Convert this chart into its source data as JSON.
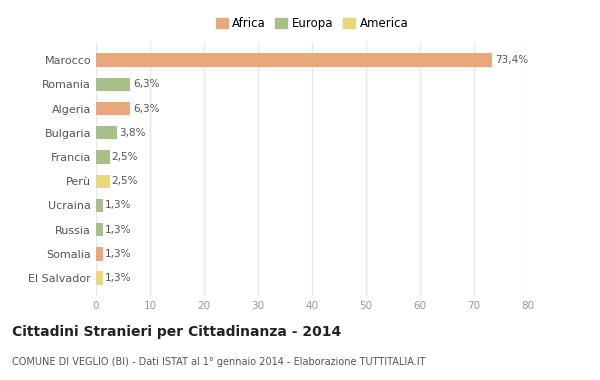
{
  "categories": [
    "Marocco",
    "Romania",
    "Algeria",
    "Bulgaria",
    "Francia",
    "Perù",
    "Ucraina",
    "Russia",
    "Somalia",
    "El Salvador"
  ],
  "values": [
    73.4,
    6.3,
    6.3,
    3.8,
    2.5,
    2.5,
    1.3,
    1.3,
    1.3,
    1.3
  ],
  "labels": [
    "73,4%",
    "6,3%",
    "6,3%",
    "3,8%",
    "2,5%",
    "2,5%",
    "1,3%",
    "1,3%",
    "1,3%",
    "1,3%"
  ],
  "colors": [
    "#e8a87c",
    "#a8bf8a",
    "#e8a87c",
    "#a8bf8a",
    "#a8bf8a",
    "#e8d87a",
    "#a8bf8a",
    "#a8bf8a",
    "#e8a87c",
    "#e8d87a"
  ],
  "legend": [
    {
      "label": "Africa",
      "color": "#e8a87c"
    },
    {
      "label": "Europa",
      "color": "#a8bf8a"
    },
    {
      "label": "America",
      "color": "#e8d87a"
    }
  ],
  "title": "Cittadini Stranieri per Cittadinanza - 2014",
  "subtitle": "COMUNE DI VEGLIO (BI) - Dati ISTAT al 1° gennaio 2014 - Elaborazione TUTTITALIA.IT",
  "xlim": [
    0,
    80
  ],
  "xticks": [
    0,
    10,
    20,
    30,
    40,
    50,
    60,
    70,
    80
  ],
  "background_color": "#ffffff",
  "plot_bg_color": "#ffffff",
  "grid_color": "#e8e8e8",
  "bar_height": 0.55,
  "label_fontsize": 7.5,
  "ytick_fontsize": 8,
  "xtick_fontsize": 7.5,
  "title_fontsize": 10,
  "subtitle_fontsize": 7,
  "legend_fontsize": 8.5
}
